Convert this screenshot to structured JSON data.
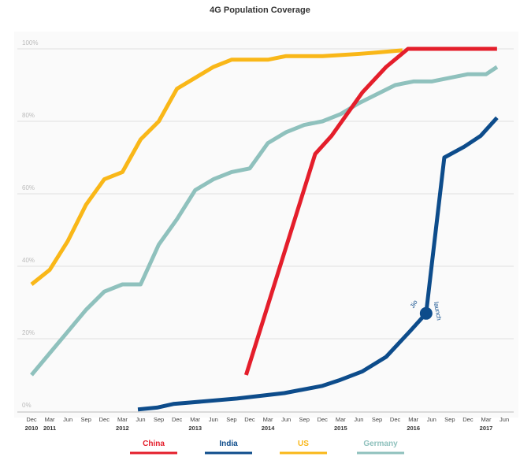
{
  "chart_data": {
    "type": "line",
    "title": "4G Population Coverage",
    "xlabel": "",
    "ylabel": "",
    "ylim": [
      0,
      100
    ],
    "yticks": [
      "0%",
      "20%",
      "40%",
      "60%",
      "80%",
      "100%"
    ],
    "ytick_values": [
      0,
      20,
      40,
      60,
      80,
      100
    ],
    "x_unit": "quarters since Dec 2010",
    "xlim": [
      0,
      26
    ],
    "xticks": [
      {
        "m": "Dec",
        "y": "2010"
      },
      {
        "m": "Mar",
        "y": "2011"
      },
      {
        "m": "Jun",
        "y": ""
      },
      {
        "m": "Sep",
        "y": ""
      },
      {
        "m": "Dec",
        "y": ""
      },
      {
        "m": "Mar",
        "y": "2012"
      },
      {
        "m": "Jun",
        "y": ""
      },
      {
        "m": "Sep",
        "y": ""
      },
      {
        "m": "Dec",
        "y": ""
      },
      {
        "m": "Mar",
        "y": "2013"
      },
      {
        "m": "Jun",
        "y": ""
      },
      {
        "m": "Sep",
        "y": ""
      },
      {
        "m": "Dec",
        "y": ""
      },
      {
        "m": "Mar",
        "y": "2014"
      },
      {
        "m": "Jun",
        "y": ""
      },
      {
        "m": "Sep",
        "y": ""
      },
      {
        "m": "Dec",
        "y": ""
      },
      {
        "m": "Mar",
        "y": "2015"
      },
      {
        "m": "Jun",
        "y": ""
      },
      {
        "m": "Sep",
        "y": ""
      },
      {
        "m": "Dec",
        "y": ""
      },
      {
        "m": "Mar",
        "y": "2016"
      },
      {
        "m": "Jun",
        "y": ""
      },
      {
        "m": "Sep",
        "y": ""
      },
      {
        "m": "Dec",
        "y": ""
      },
      {
        "m": "Mar",
        "y": "2017"
      },
      {
        "m": "Jun",
        "y": ""
      }
    ],
    "grid": true,
    "legend_position": "bottom",
    "series": [
      {
        "name": "Germany",
        "color": "#8fc1bd",
        "points": [
          [
            0,
            10
          ],
          [
            1,
            16
          ],
          [
            2,
            22
          ],
          [
            3,
            28
          ],
          [
            4,
            33
          ],
          [
            5,
            35
          ],
          [
            6,
            35
          ],
          [
            7,
            46
          ],
          [
            8,
            53
          ],
          [
            9,
            61
          ],
          [
            10,
            64
          ],
          [
            11,
            66
          ],
          [
            12,
            67
          ],
          [
            13,
            74
          ],
          [
            14,
            77
          ],
          [
            15,
            79
          ],
          [
            16,
            80
          ],
          [
            17,
            82
          ],
          [
            18,
            85
          ],
          [
            19,
            87.5
          ],
          [
            20,
            90
          ],
          [
            21,
            91
          ],
          [
            22,
            91
          ],
          [
            23,
            92
          ],
          [
            24,
            93
          ],
          [
            25,
            93
          ],
          [
            25.6,
            95
          ]
        ]
      },
      {
        "name": "US",
        "color": "#f9b718",
        "points": [
          [
            0,
            35
          ],
          [
            1,
            39
          ],
          [
            2,
            47
          ],
          [
            3,
            57
          ],
          [
            4,
            64
          ],
          [
            5,
            66
          ],
          [
            6,
            75
          ],
          [
            7,
            80
          ],
          [
            8,
            89
          ],
          [
            9,
            92
          ],
          [
            10,
            95
          ],
          [
            11,
            97
          ],
          [
            12,
            97
          ],
          [
            13,
            97
          ],
          [
            14,
            98
          ],
          [
            15,
            98
          ],
          [
            16,
            98
          ],
          [
            17,
            98.3
          ],
          [
            18,
            98.6
          ],
          [
            19,
            99
          ],
          [
            20.4,
            99.6
          ]
        ]
      },
      {
        "name": "China",
        "color": "#e41e2b",
        "points": [
          [
            11.8,
            10
          ],
          [
            15.6,
            71
          ],
          [
            16.5,
            76
          ],
          [
            18.2,
            88
          ],
          [
            19.5,
            95
          ],
          [
            20.7,
            100
          ],
          [
            25.6,
            100
          ]
        ]
      },
      {
        "name": "India",
        "color": "#0d4c8b",
        "points": [
          [
            5.85,
            0.5
          ],
          [
            6.9,
            1
          ],
          [
            7.8,
            2
          ],
          [
            11.3,
            3.5
          ],
          [
            13.9,
            5
          ],
          [
            16,
            7
          ],
          [
            16.9,
            8.5
          ],
          [
            18.2,
            11
          ],
          [
            19.5,
            15
          ],
          [
            20.8,
            22
          ],
          [
            21.7,
            27
          ],
          [
            22,
            40
          ],
          [
            22.7,
            70
          ],
          [
            23.8,
            73
          ],
          [
            24.7,
            76
          ],
          [
            25.6,
            81
          ]
        ]
      }
    ],
    "annotations": [
      {
        "series": "India",
        "x": 21.7,
        "y": 27,
        "text_left": "Jio",
        "text_right": "launch"
      }
    ],
    "legend": [
      "China",
      "India",
      "US",
      "Germany"
    ]
  }
}
